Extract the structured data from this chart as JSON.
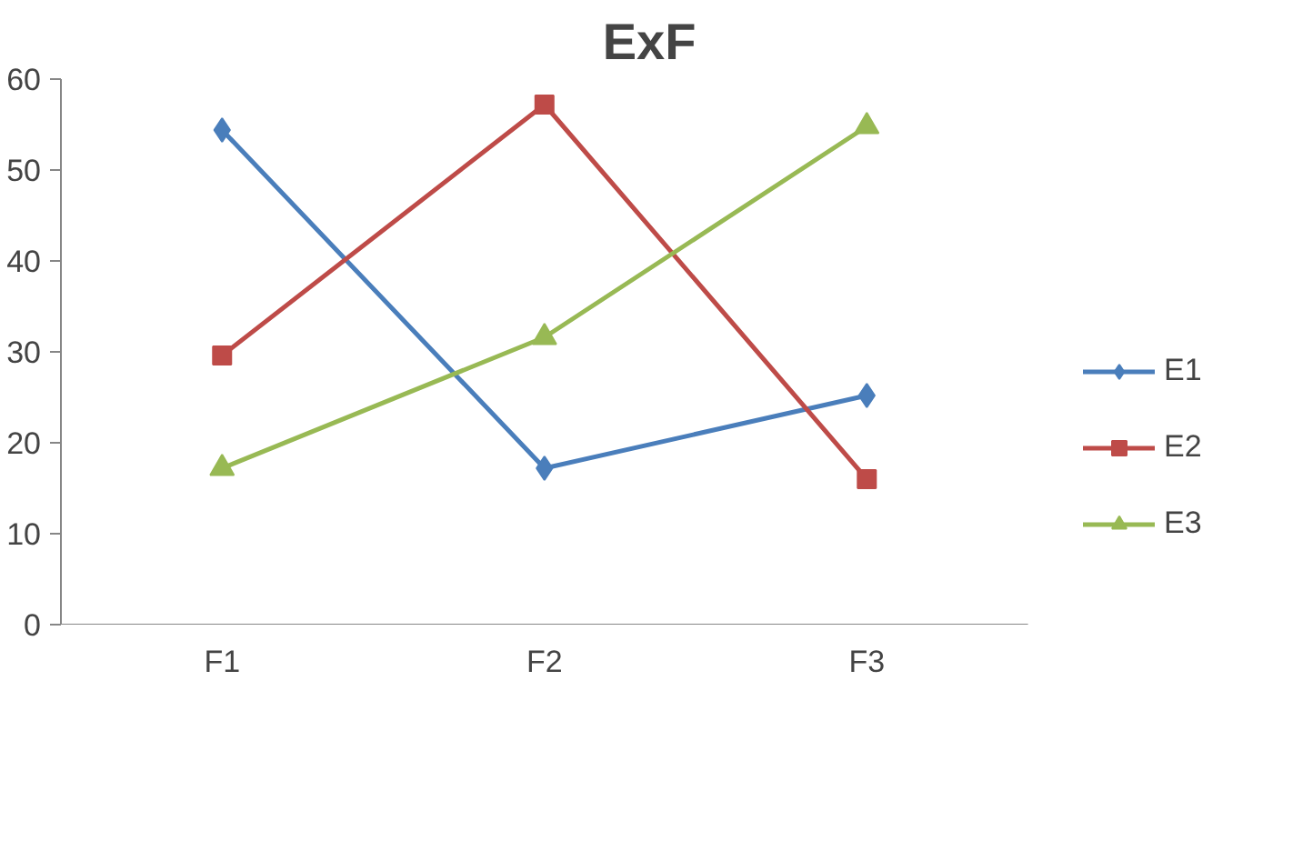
{
  "chart_data": {
    "type": "line",
    "title": "ExF",
    "categories": [
      "F1",
      "F2",
      "F3"
    ],
    "series": [
      {
        "name": "E1",
        "color": "#4a7ebb",
        "marker": "diamond",
        "values": [
          54.4,
          17.2,
          25.2
        ]
      },
      {
        "name": "E2",
        "color": "#be4b48",
        "marker": "square",
        "values": [
          29.6,
          57.2,
          16
        ]
      },
      {
        "name": "E3",
        "color": "#98b954",
        "marker": "triangle",
        "values": [
          17.2,
          31.6,
          54.8
        ]
      }
    ],
    "ylim": [
      0,
      60
    ],
    "yticks": [
      0,
      10,
      20,
      30,
      40,
      50,
      60
    ],
    "grid": false,
    "legend": "right",
    "line_style": "solid"
  }
}
